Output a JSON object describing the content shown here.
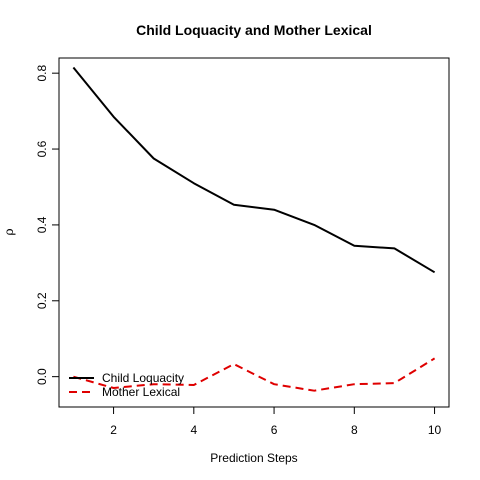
{
  "chart_data": {
    "type": "line",
    "title": "Child Loquacity and Mother Lexical",
    "xlabel": "Prediction Steps",
    "ylabel": "ρ",
    "xlim": [
      0.64,
      10.36
    ],
    "ylim": [
      -0.08,
      0.84
    ],
    "x_ticks": [
      2,
      4,
      6,
      8,
      10
    ],
    "y_ticks": [
      0.0,
      0.2,
      0.4,
      0.6,
      0.8
    ],
    "x_tick_labels": [
      "2",
      "4",
      "6",
      "8",
      "10"
    ],
    "y_tick_labels": [
      "0.0",
      "0.2",
      "0.4",
      "0.6",
      "0.8"
    ],
    "x": [
      1,
      2,
      3,
      4,
      5,
      6,
      7,
      8,
      9,
      10
    ],
    "series": [
      {
        "name": "Child Loquacity",
        "color": "#000000",
        "dash": "solid",
        "values": [
          0.815,
          0.685,
          0.575,
          0.51,
          0.453,
          0.44,
          0.4,
          0.345,
          0.338,
          0.275
        ]
      },
      {
        "name": "Mother Lexical",
        "color": "#DF0000",
        "dash": "dashed",
        "values": [
          0.0,
          -0.03,
          -0.02,
          -0.022,
          0.033,
          -0.02,
          -0.037,
          -0.02,
          -0.017,
          0.048
        ]
      }
    ],
    "legend_position": "bottom-left",
    "grid": false
  }
}
